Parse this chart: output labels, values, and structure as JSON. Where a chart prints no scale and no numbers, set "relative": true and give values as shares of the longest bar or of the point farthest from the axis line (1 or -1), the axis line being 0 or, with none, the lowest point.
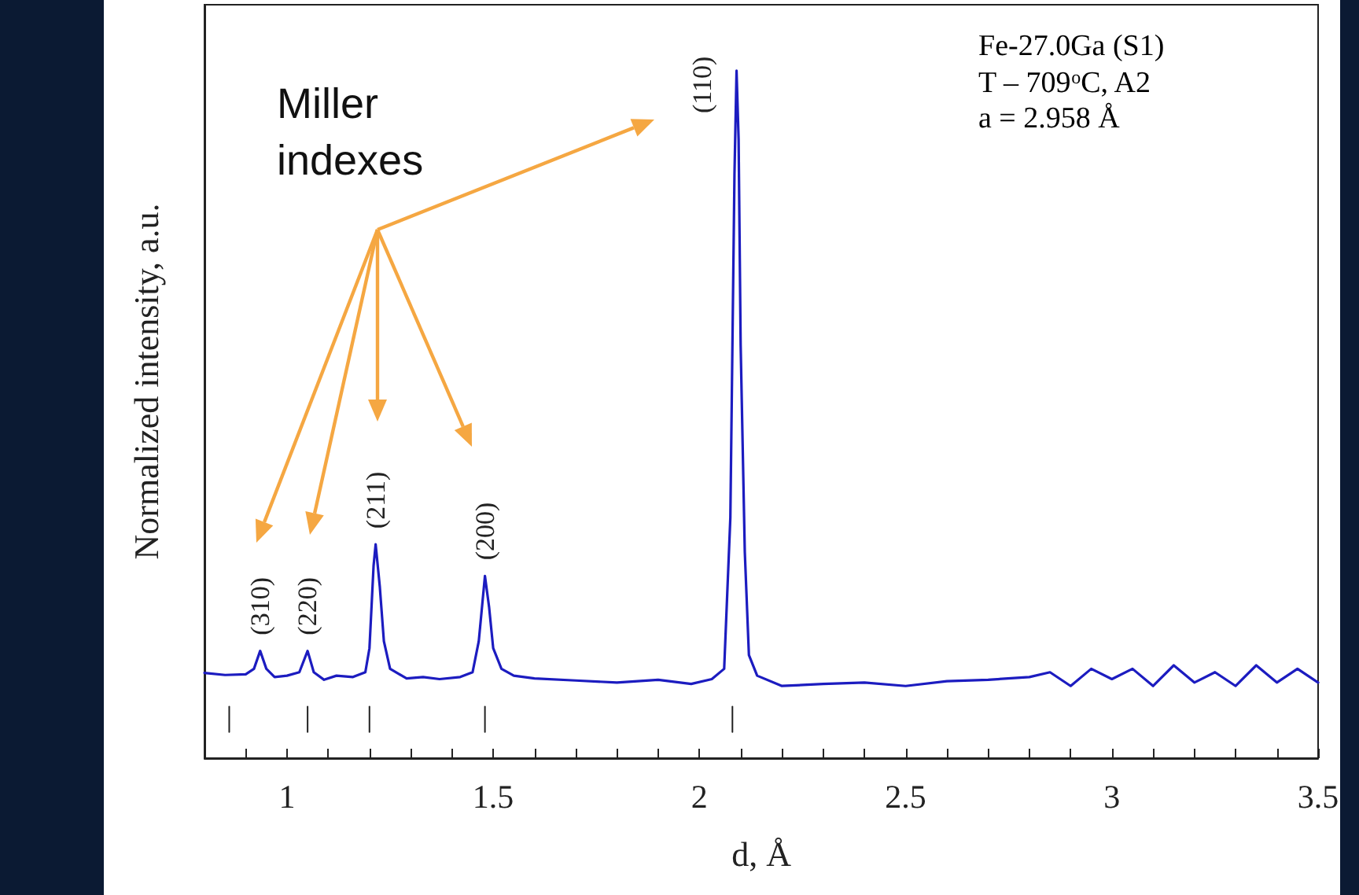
{
  "chart_data": {
    "type": "line",
    "relative": true,
    "xlabel": "d, Å",
    "ylabel": "Normalized intensity, a.u.",
    "xlim": [
      0.8,
      3.5
    ],
    "xticks": [
      {
        "value": 0.9,
        "label": null
      },
      1,
      {
        "value": 1.1,
        "label": null
      },
      {
        "value": 1.2,
        "label": null
      },
      {
        "value": 1.3,
        "label": null
      },
      {
        "value": 1.4,
        "label": null
      },
      1.5,
      {
        "value": 1.6,
        "label": null
      },
      {
        "value": 1.7,
        "label": null
      },
      {
        "value": 1.8,
        "label": null
      },
      {
        "value": 1.9,
        "label": null
      },
      2,
      {
        "value": 2.1,
        "label": null
      },
      {
        "value": 2.2,
        "label": null
      },
      {
        "value": 2.3,
        "label": null
      },
      {
        "value": 2.4,
        "label": null
      },
      2.5,
      {
        "value": 2.6,
        "label": null
      },
      {
        "value": 2.7,
        "label": null
      },
      {
        "value": 2.8,
        "label": null
      },
      {
        "value": 2.9,
        "label": null
      },
      3,
      {
        "value": 3.1,
        "label": null
      },
      {
        "value": 3.2,
        "label": null
      },
      {
        "value": 3.3,
        "label": null
      },
      {
        "value": 3.4,
        "label": null
      },
      3.5
    ],
    "grid": false,
    "marker": "none",
    "line_style": "solid",
    "series": [
      {
        "color": "#1c1cc0",
        "x": [
          0.8,
          0.85,
          0.9,
          0.92,
          0.935,
          0.95,
          0.97,
          1.0,
          1.03,
          1.05,
          1.065,
          1.09,
          1.12,
          1.16,
          1.19,
          1.2,
          1.21,
          1.215,
          1.225,
          1.235,
          1.25,
          1.29,
          1.33,
          1.37,
          1.42,
          1.45,
          1.465,
          1.48,
          1.49,
          1.5,
          1.52,
          1.55,
          1.6,
          1.7,
          1.8,
          1.9,
          1.98,
          2.03,
          2.06,
          2.075,
          2.085,
          2.09,
          2.095,
          2.1,
          2.11,
          2.12,
          2.14,
          2.2,
          2.3,
          2.4,
          2.5,
          2.6,
          2.7,
          2.8,
          2.85,
          2.9,
          2.95,
          3.0,
          3.05,
          3.1,
          3.15,
          3.2,
          3.25,
          3.3,
          3.35,
          3.4,
          3.45,
          3.5
        ],
        "values": [
          0.124,
          0.121,
          0.122,
          0.13,
          0.156,
          0.13,
          0.118,
          0.12,
          0.125,
          0.156,
          0.125,
          0.114,
          0.12,
          0.118,
          0.125,
          0.16,
          0.28,
          0.311,
          0.25,
          0.17,
          0.13,
          0.116,
          0.118,
          0.115,
          0.118,
          0.125,
          0.17,
          0.265,
          0.22,
          0.16,
          0.13,
          0.12,
          0.116,
          0.113,
          0.11,
          0.114,
          0.108,
          0.115,
          0.13,
          0.35,
          0.85,
          1,
          0.9,
          0.6,
          0.3,
          0.15,
          0.12,
          0.105,
          0.108,
          0.11,
          0.105,
          0.112,
          0.114,
          0.118,
          0.125,
          0.105,
          0.13,
          0.115,
          0.13,
          0.105,
          0.135,
          0.11,
          0.125,
          0.105,
          0.135,
          0.11,
          0.13,
          0.11
        ]
      },
      {
        "type": "line",
        "color": "#222222",
        "x": [
          0.86,
          0.86
        ],
        "values": [
          0.038,
          0.075
        ]
      },
      {
        "type": "line",
        "color": "#222222",
        "x": [
          1.05,
          1.05
        ],
        "values": [
          0.038,
          0.075
        ]
      },
      {
        "type": "line",
        "color": "#222222",
        "x": [
          1.2,
          1.2
        ],
        "values": [
          0.038,
          0.075
        ]
      },
      {
        "type": "line",
        "color": "#222222",
        "x": [
          1.48,
          1.48
        ],
        "values": [
          0.038,
          0.075
        ]
      },
      {
        "type": "line",
        "color": "#222222",
        "x": [
          2.08,
          2.08
        ],
        "values": [
          0.038,
          0.075
        ]
      }
    ],
    "annotations": [
      "Miller indexes",
      "Fe-27.0Ga (S1)",
      "T – 709$^{o}$C, A2",
      "a = 2.958 Å",
      {
        "text": "(310)",
        "x": 0.935,
        "y": 0.156
      },
      {
        "text": "(220)",
        "x": 1.05,
        "y": 0.156
      },
      {
        "text": "(211)",
        "x": 1.215,
        "y": 0.311
      },
      {
        "text": "(200)",
        "x": 1.48,
        "y": 0.265
      },
      {
        "text": "(110)",
        "x": 2.09,
        "y": 1
      }
    ]
  }
}
